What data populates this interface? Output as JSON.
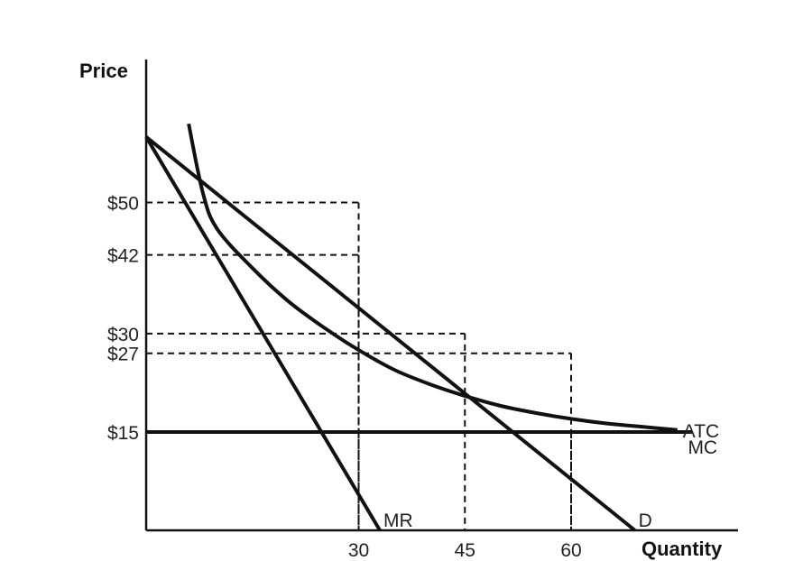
{
  "chart_data": {
    "type": "line",
    "title": "",
    "xlabel": "Quantity",
    "ylabel": "Price",
    "xlim": [
      0,
      85
    ],
    "ylim": [
      0,
      75
    ],
    "grid": false,
    "x_ticks": [
      {
        "value": 30,
        "label": "30"
      },
      {
        "value": 45,
        "label": "45"
      },
      {
        "value": 60,
        "label": "60"
      }
    ],
    "y_ticks": [
      {
        "value": 50,
        "label": "$50"
      },
      {
        "value": 42,
        "label": "$42"
      },
      {
        "value": 30,
        "label": "$30"
      },
      {
        "value": 27,
        "label": "$27"
      },
      {
        "value": 15,
        "label": "$15"
      }
    ],
    "series": [
      {
        "name": "D",
        "kind": "line",
        "x": [
          0,
          69
        ],
        "y": [
          60,
          0
        ]
      },
      {
        "name": "MR",
        "kind": "line",
        "x": [
          0,
          33
        ],
        "y": [
          60,
          0
        ]
      },
      {
        "name": "MC",
        "kind": "line",
        "x": [
          0,
          77
        ],
        "y": [
          15,
          15
        ]
      },
      {
        "name": "ATC",
        "kind": "curve",
        "x": [
          6,
          8,
          10,
          15,
          20,
          25,
          30,
          35,
          40,
          45,
          50,
          55,
          60,
          65,
          70,
          75
        ],
        "y": [
          62,
          51.5,
          46,
          40,
          35,
          31,
          27.5,
          24.5,
          22.3,
          20.5,
          19,
          17.9,
          17,
          16.3,
          15.8,
          15.3
        ]
      }
    ],
    "guides": [
      {
        "x": 30,
        "y": 50
      },
      {
        "x": 30,
        "y": 42
      },
      {
        "x": 45,
        "y": 30
      },
      {
        "x": 60,
        "y": 27
      },
      {
        "x": 30,
        "y": 15
      },
      {
        "x": 60,
        "y": 15
      }
    ]
  }
}
